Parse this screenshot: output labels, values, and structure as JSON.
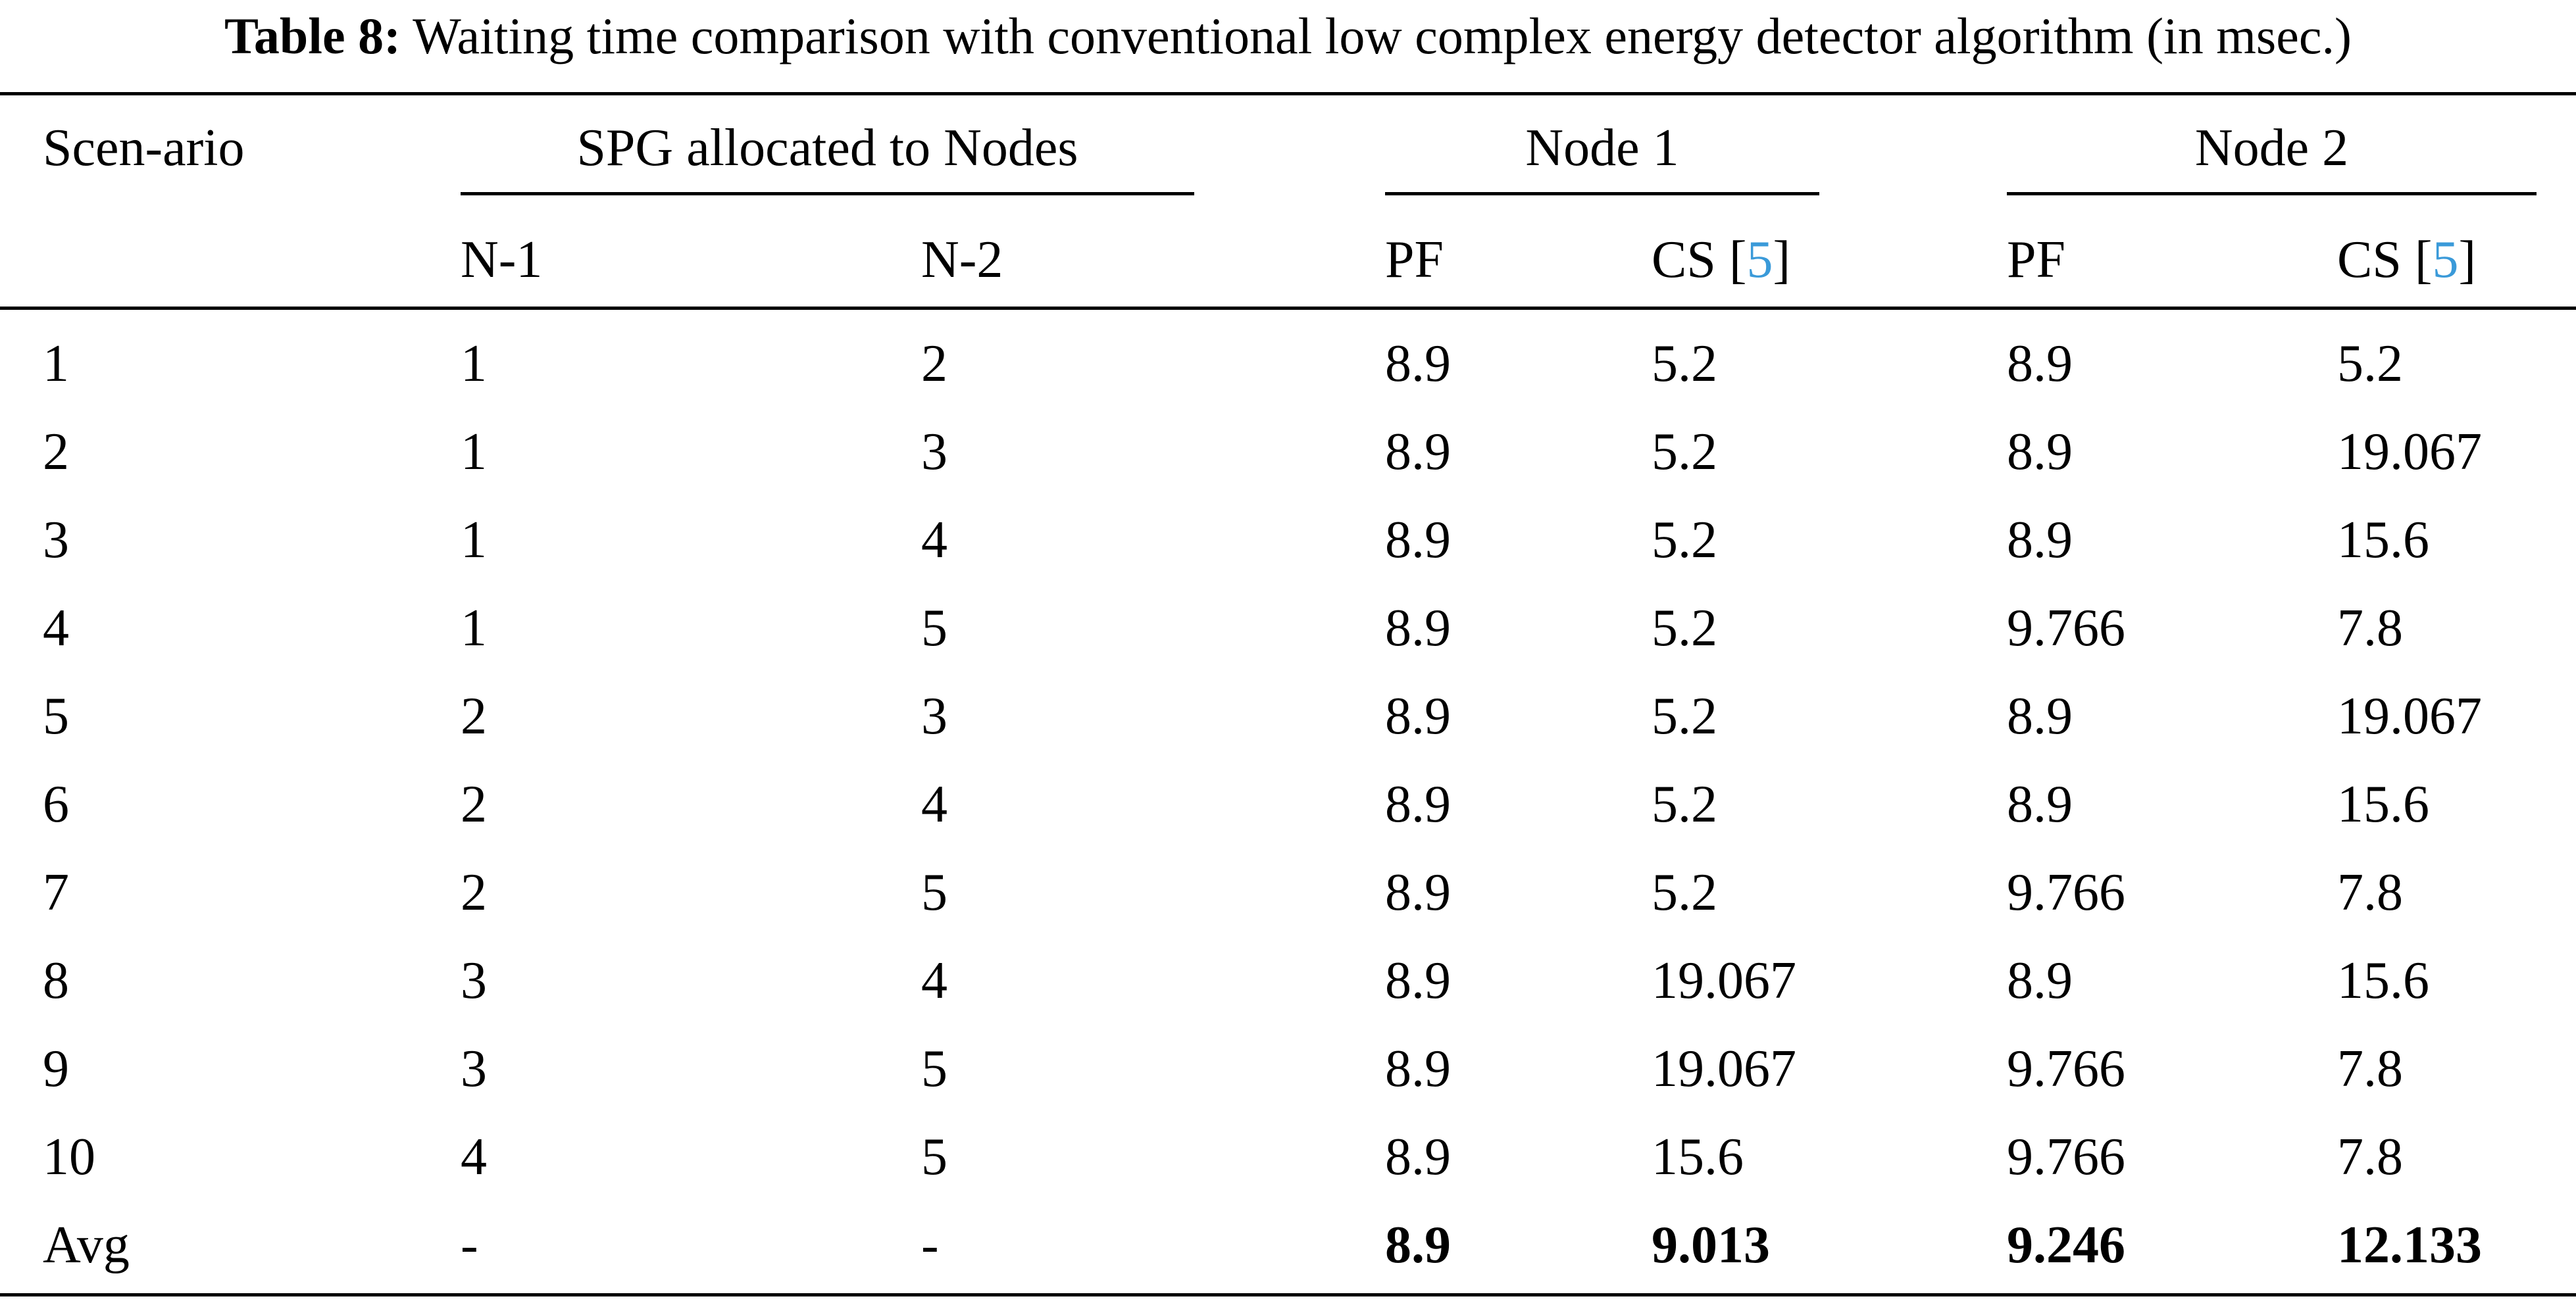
{
  "caption": {
    "label": "Table 8:",
    "text": "Waiting time comparison with conventional low complex energy detector algorithm (in msec.)"
  },
  "header": {
    "scenario": "Scen-ario",
    "spg_group": "SPG allocated to Nodes",
    "node1_group": "Node 1",
    "node2_group": "Node 2",
    "n1": "N-1",
    "n2": "N-2",
    "pf": "PF",
    "cs_prefix": "CS [",
    "cs_ref": "5",
    "cs_suffix": "]"
  },
  "rows": [
    {
      "scenario": "1",
      "n1": "1",
      "n2": "2",
      "node1_pf": "8.9",
      "node1_cs": "5.2",
      "node2_pf": "8.9",
      "node2_cs": "5.2"
    },
    {
      "scenario": "2",
      "n1": "1",
      "n2": "3",
      "node1_pf": "8.9",
      "node1_cs": "5.2",
      "node2_pf": "8.9",
      "node2_cs": "19.067"
    },
    {
      "scenario": "3",
      "n1": "1",
      "n2": "4",
      "node1_pf": "8.9",
      "node1_cs": "5.2",
      "node2_pf": "8.9",
      "node2_cs": "15.6"
    },
    {
      "scenario": "4",
      "n1": "1",
      "n2": "5",
      "node1_pf": "8.9",
      "node1_cs": "5.2",
      "node2_pf": "9.766",
      "node2_cs": "7.8"
    },
    {
      "scenario": "5",
      "n1": "2",
      "n2": "3",
      "node1_pf": "8.9",
      "node1_cs": "5.2",
      "node2_pf": "8.9",
      "node2_cs": "19.067"
    },
    {
      "scenario": "6",
      "n1": "2",
      "n2": "4",
      "node1_pf": "8.9",
      "node1_cs": "5.2",
      "node2_pf": "8.9",
      "node2_cs": "15.6"
    },
    {
      "scenario": "7",
      "n1": "2",
      "n2": "5",
      "node1_pf": "8.9",
      "node1_cs": "5.2",
      "node2_pf": "9.766",
      "node2_cs": "7.8"
    },
    {
      "scenario": "8",
      "n1": "3",
      "n2": "4",
      "node1_pf": "8.9",
      "node1_cs": "19.067",
      "node2_pf": "8.9",
      "node2_cs": "15.6"
    },
    {
      "scenario": "9",
      "n1": "3",
      "n2": "5",
      "node1_pf": "8.9",
      "node1_cs": "19.067",
      "node2_pf": "9.766",
      "node2_cs": "7.8"
    },
    {
      "scenario": "10",
      "n1": "4",
      "n2": "5",
      "node1_pf": "8.9",
      "node1_cs": "15.6",
      "node2_pf": "9.766",
      "node2_cs": "7.8"
    }
  ],
  "avg": {
    "scenario": "Avg",
    "n1": "-",
    "n2": "-",
    "node1_pf": "8.9",
    "node1_cs": "9.013",
    "node2_pf": "9.246",
    "node2_cs": "12.133"
  },
  "colors": {
    "citation": "#3a9ad9"
  }
}
